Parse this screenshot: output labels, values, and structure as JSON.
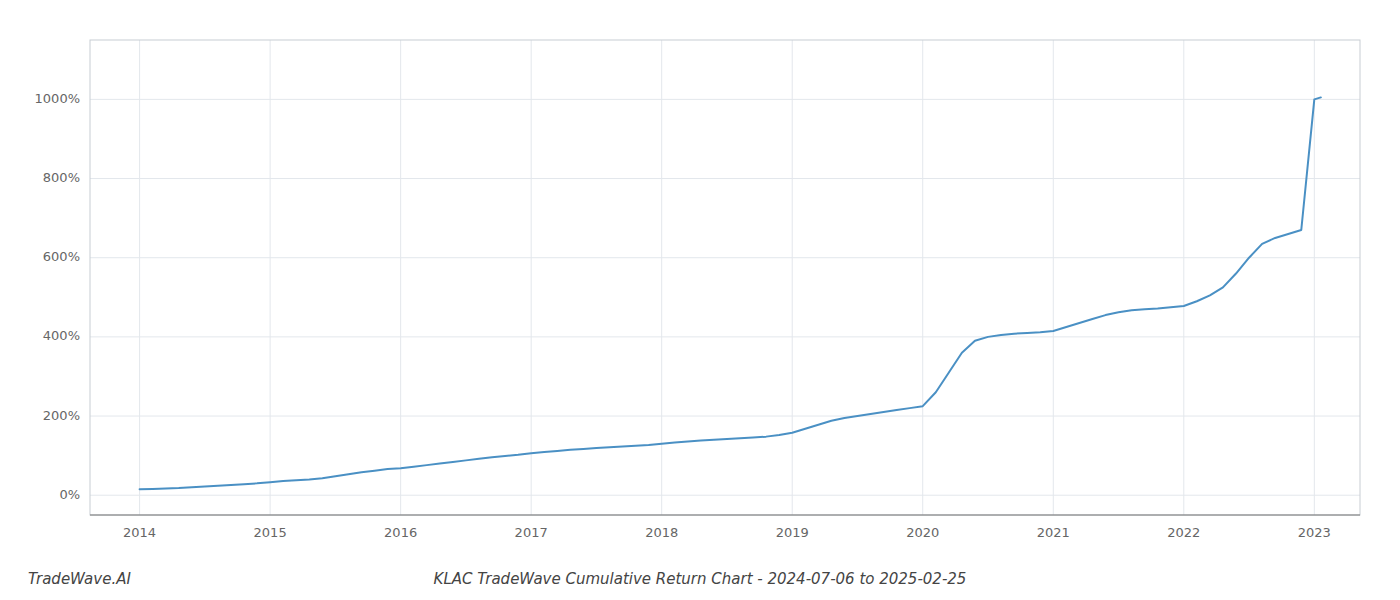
{
  "chart_data": {
    "type": "line",
    "title": "KLAC TradeWave Cumulative Return Chart - 2024-07-06 to 2025-02-25",
    "annotations": [
      "TradeWave.AI"
    ],
    "color": "#4a90c4",
    "grid": true,
    "x": [
      2014.0,
      2014.1,
      2014.2,
      2014.3,
      2014.4,
      2014.5,
      2014.6,
      2014.7,
      2014.8,
      2014.9,
      2015.0,
      2015.1,
      2015.2,
      2015.3,
      2015.4,
      2015.5,
      2015.6,
      2015.7,
      2015.8,
      2015.9,
      2016.0,
      2016.1,
      2016.2,
      2016.3,
      2016.4,
      2016.5,
      2016.6,
      2016.7,
      2016.8,
      2016.9,
      2017.0,
      2017.1,
      2017.2,
      2017.3,
      2017.4,
      2017.5,
      2017.6,
      2017.7,
      2017.8,
      2017.9,
      2018.0,
      2018.1,
      2018.2,
      2018.3,
      2018.4,
      2018.5,
      2018.6,
      2018.7,
      2018.8,
      2018.9,
      2019.0,
      2019.1,
      2019.2,
      2019.3,
      2019.4,
      2019.5,
      2019.6,
      2019.7,
      2019.8,
      2019.9,
      2020.0,
      2020.1,
      2020.2,
      2020.3,
      2020.4,
      2020.5,
      2020.6,
      2020.7,
      2020.8,
      2020.9,
      2021.0,
      2021.1,
      2021.2,
      2021.3,
      2021.4,
      2021.5,
      2021.6,
      2021.7,
      2021.8,
      2021.9,
      2022.0,
      2022.1,
      2022.2,
      2022.3,
      2022.4,
      2022.5,
      2022.6,
      2022.7,
      2022.8,
      2022.9,
      2023.0,
      2023.05
    ],
    "values": [
      15,
      16,
      17,
      18,
      20,
      22,
      24,
      26,
      28,
      30,
      33,
      36,
      38,
      40,
      43,
      48,
      53,
      58,
      62,
      66,
      68,
      72,
      76,
      80,
      84,
      88,
      92,
      96,
      99,
      102,
      106,
      109,
      112,
      115,
      117,
      119,
      121,
      123,
      125,
      127,
      130,
      133,
      136,
      138,
      140,
      142,
      144,
      146,
      148,
      152,
      158,
      168,
      178,
      188,
      195,
      200,
      205,
      210,
      215,
      220,
      225,
      260,
      310,
      360,
      390,
      400,
      405,
      408,
      410,
      412,
      415,
      425,
      435,
      445,
      455,
      462,
      467,
      470,
      472,
      475,
      478,
      490,
      505,
      525,
      560,
      600,
      635,
      650,
      660,
      670,
      1000,
      1005
    ],
    "xlim": [
      2013.62,
      2023.35
    ],
    "ylim": [
      -50,
      1150
    ],
    "xticks": [
      2014,
      2015,
      2016,
      2017,
      2018,
      2019,
      2020,
      2021,
      2022,
      2023
    ],
    "yticks": [
      {
        "value": 0,
        "label": "0%"
      },
      {
        "value": 200,
        "label": "200%"
      },
      {
        "value": 400,
        "label": "400%"
      },
      {
        "value": 600,
        "label": "600%"
      },
      {
        "value": 800,
        "label": "800%"
      },
      {
        "value": 1000,
        "label": "1000%"
      }
    ]
  }
}
